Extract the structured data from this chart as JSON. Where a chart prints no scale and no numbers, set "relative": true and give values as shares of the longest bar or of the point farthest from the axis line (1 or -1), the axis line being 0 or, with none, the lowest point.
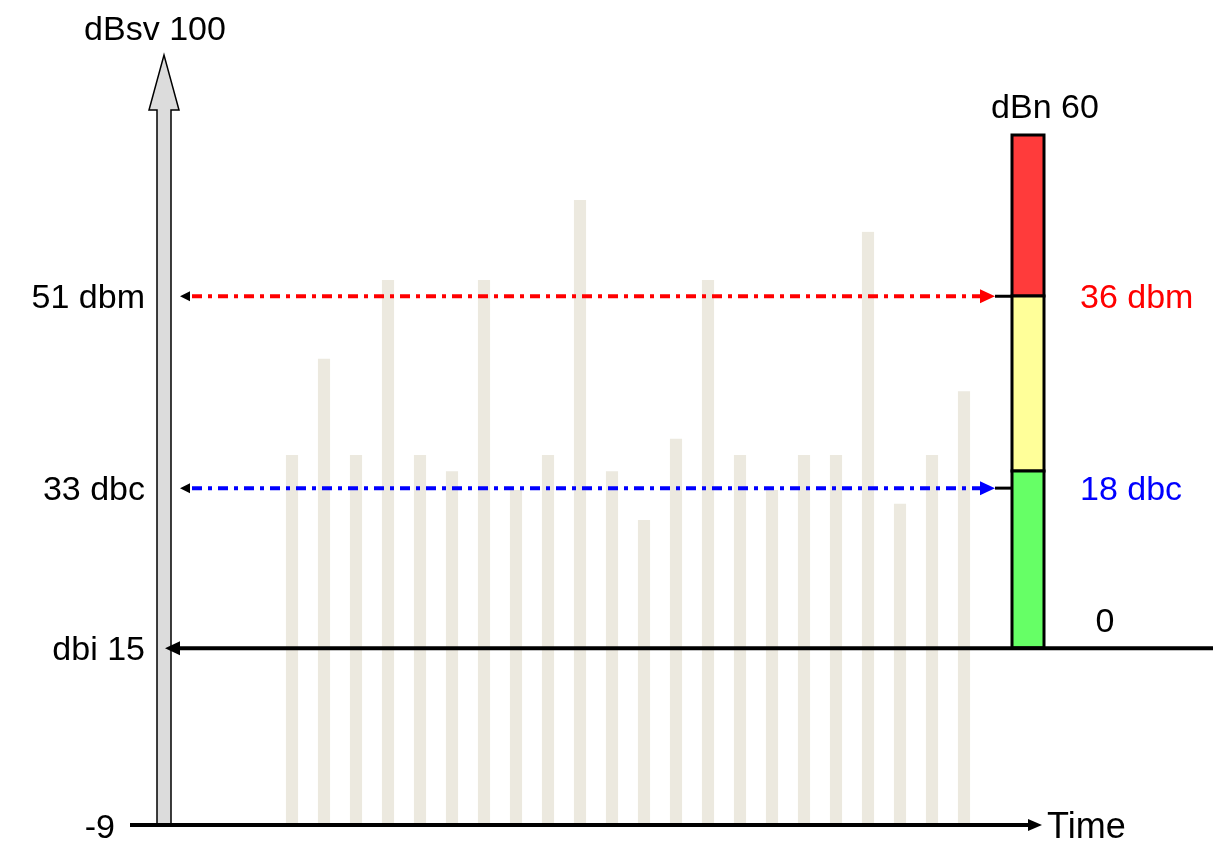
{
  "chart_data": {
    "type": "bar",
    "relative": true,
    "xlabel": "Time",
    "color": "#ece9df",
    "categories": [
      null,
      null,
      null,
      null,
      null,
      null,
      null,
      null,
      null,
      null,
      null,
      null,
      null,
      null,
      null,
      null,
      null,
      null,
      null,
      null,
      null,
      null
    ],
    "values": [
      0.592,
      0.746,
      0.592,
      0.872,
      0.592,
      0.566,
      0.872,
      0.536,
      0.592,
      1,
      0.566,
      0.488,
      0.618,
      0.872,
      0.592,
      0.536,
      0.592,
      0.592,
      0.949,
      0.514,
      0.592,
      0.694
    ],
    "ref_lines": [
      {
        "axis": "y",
        "value": 0.846,
        "color": "#ff0000",
        "line_style": "dashed"
      },
      {
        "axis": "y",
        "value": 0.539,
        "color": "#0000ff",
        "line_style": "dashed"
      },
      {
        "axis": "y",
        "value": 0.283,
        "color": "#000000",
        "line_style": "solid"
      }
    ],
    "annotations": [
      "dBsv 100",
      "dBn 60",
      "-9",
      "51 dbm",
      "36 dbm",
      "33 dbc",
      "18 dbc",
      "dbi 15",
      "0"
    ]
  }
}
